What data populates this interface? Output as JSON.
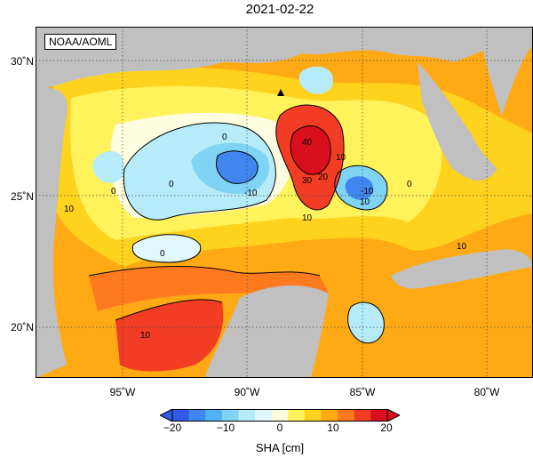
{
  "title": "2021-02-22",
  "credit": "NOAA/AOML",
  "lat_labels": [
    "30˚N",
    "25˚N",
    "20˚N"
  ],
  "lon_labels": [
    "95˚W",
    "90˚W",
    "85˚W",
    "80˚W"
  ],
  "contour_labels": {
    "c40": "40",
    "c30": "30",
    "c20": "20",
    "c10a": "10",
    "c10b": "10",
    "c10c": "10",
    "c10d": "10",
    "c10e": "10",
    "c0a": "0",
    "c0b": "0",
    "c0c": "0",
    "c0d": "0",
    "c0e": "0",
    "cm10a": "-10",
    "cm10b": "-10",
    "c10f": "10"
  },
  "colorbar": {
    "ticks": [
      "−20",
      "−10",
      "0",
      "10",
      "20"
    ],
    "label": "SHA [cm]",
    "colors": [
      "#2e5ae6",
      "#3f86ee",
      "#4fb2f2",
      "#7fd4f6",
      "#b6ecf9",
      "#e0f8fb",
      "#fffde0",
      "#fff25a",
      "#ffd21e",
      "#ffa914",
      "#ff7a1e",
      "#f23d24",
      "#d90f1e"
    ]
  },
  "land_color": "#c0c0c0"
}
